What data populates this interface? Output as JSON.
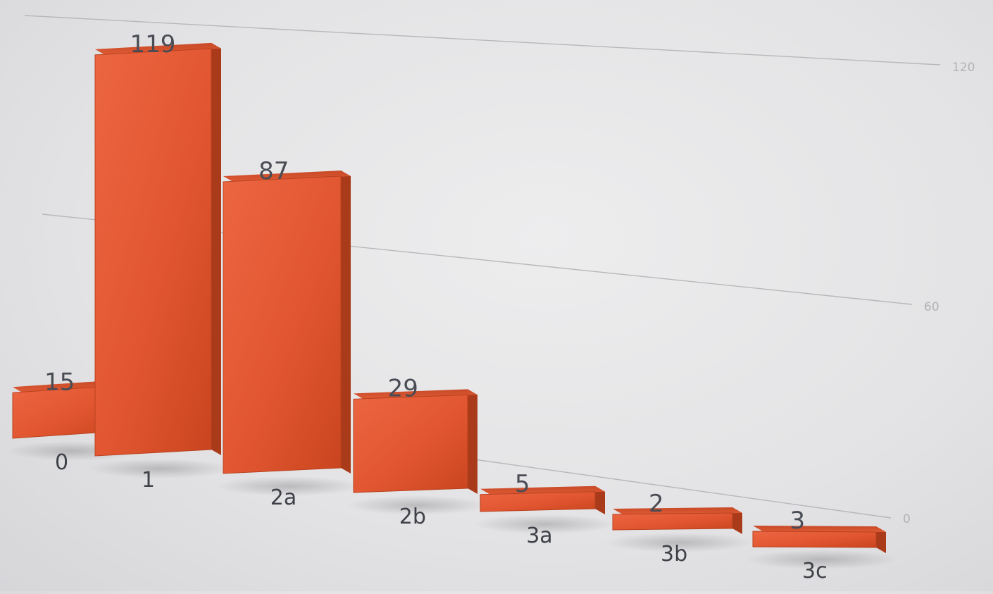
{
  "chart_data": {
    "type": "bar",
    "categories": [
      "0",
      "1",
      "2a",
      "2b",
      "3a",
      "3b",
      "3c"
    ],
    "values": [
      15,
      119,
      87,
      29,
      5,
      2,
      3
    ],
    "ylim": [
      0,
      120
    ],
    "yticks": [
      "0",
      "60",
      "120"
    ],
    "grid": true,
    "bar_color": "#e0552f"
  }
}
